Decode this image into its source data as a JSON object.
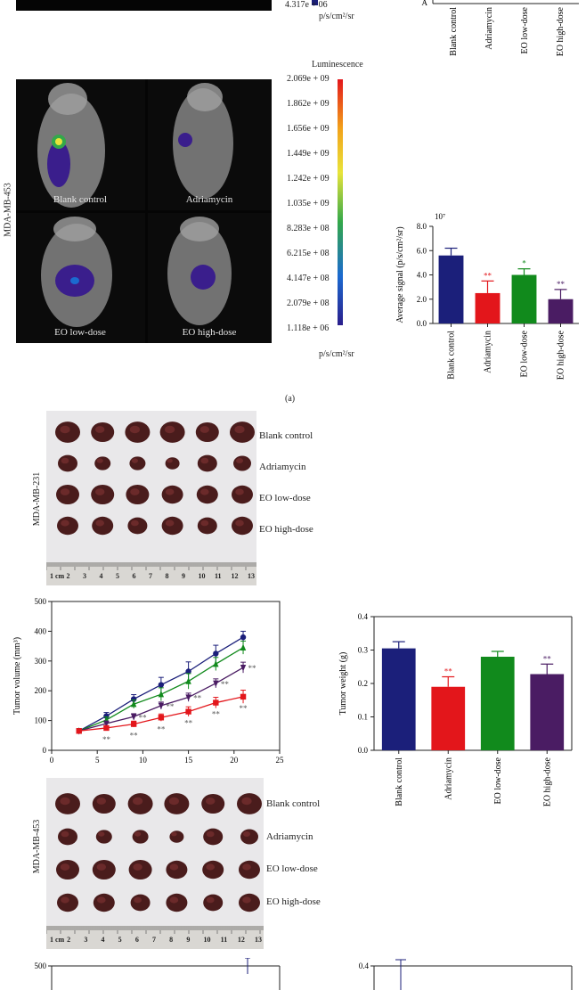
{
  "panel_a_label": "(a)",
  "luminescence": {
    "header": "Luminescence",
    "scale_values": [
      "2.069e + 09",
      "1.862e + 09",
      "1.656e + 09",
      "1.449e + 09",
      "1.242e + 09",
      "1.035e + 09",
      "8.283e + 08",
      "6.215e + 08",
      "4.147e + 08",
      "2.079e + 08",
      "1.118e + 06"
    ],
    "unit": "p/s/cm²/sr",
    "top_partial_value": "4.317e + 06",
    "top_partial_unit": "p/s/cm²/sr"
  },
  "mda453_photo_label": "MDA-MB-453",
  "mda231_photo_label": "MDA-MB-231",
  "mouse_labels": [
    "Blank control",
    "Adriamycin",
    "EO low-dose",
    "EO high-dose"
  ],
  "tumor_rows_231": [
    "Blank control",
    "Adriamycin",
    "EO low-dose",
    "EO high-dose"
  ],
  "tumor_rows_453": [
    "Blank control",
    "Adriamycin",
    "EO low-dose",
    "EO high-dose"
  ],
  "ruler_231": [
    "1 cm",
    "2",
    "3",
    "4",
    "5",
    "6",
    "7",
    "8",
    "9",
    "10",
    "11",
    "12",
    "13"
  ],
  "ruler_453": [
    "1 cm",
    "2",
    "3",
    "4",
    "5",
    "6",
    "7",
    "8",
    "9",
    "10",
    "11",
    "12",
    "13"
  ],
  "top_partial_bar_categories": [
    "Blank control",
    "Adriamycin",
    "EO low-dose",
    "EO high-dose"
  ],
  "colors": {
    "blank": "#1b1f7a",
    "adria": "#e3161b",
    "low": "#118a1c",
    "high": "#4a1c63"
  },
  "chart_data": [
    {
      "type": "bar",
      "id": "signal-453",
      "multiplier": "10⁷",
      "ylabel": "Average signal (p/s/cm²/sr)",
      "categories": [
        "Blank control",
        "Adriamycin",
        "EO low-dose",
        "EO high-dose"
      ],
      "values": [
        5.6,
        2.5,
        4.0,
        2.0
      ],
      "errors": [
        0.6,
        1.0,
        0.5,
        0.8
      ],
      "significance": [
        "",
        "**",
        "*",
        "**"
      ],
      "ylim": [
        0,
        8
      ],
      "yticks": [
        "0.0",
        "2.0",
        "4.0",
        "6.0",
        "8.0"
      ]
    },
    {
      "type": "line",
      "id": "volume-231",
      "ylabel": "Tumor volume (mm³)",
      "xlim": [
        0,
        25
      ],
      "ylim": [
        0,
        500
      ],
      "xticks": [
        "0",
        "5",
        "10",
        "15",
        "20",
        "25"
      ],
      "yticks": [
        "0",
        "100",
        "200",
        "300",
        "400",
        "500"
      ],
      "x": [
        3,
        6,
        9,
        12,
        15,
        18,
        21
      ],
      "series": [
        {
          "values": [
            65,
            115,
            172,
            220,
            265,
            325,
            380
          ],
          "errors": [
            4,
            12,
            15,
            25,
            32,
            28,
            20
          ],
          "marker": "circle",
          "labels": [
            "",
            "",
            "",
            "",
            "",
            "",
            ""
          ]
        },
        {
          "values": [
            65,
            102,
            155,
            188,
            232,
            290,
            345
          ],
          "errors": [
            4,
            10,
            14,
            22,
            26,
            22,
            22
          ],
          "marker": "triangle-up",
          "labels": [
            "",
            "",
            "",
            "",
            "",
            "",
            ""
          ]
        },
        {
          "values": [
            65,
            90,
            113,
            150,
            178,
            225,
            278
          ],
          "errors": [
            4,
            8,
            10,
            12,
            14,
            15,
            18
          ],
          "marker": "triangle-down",
          "labels": [
            "",
            "",
            "**",
            "**",
            "**",
            "**",
            "**"
          ]
        },
        {
          "values": [
            65,
            75,
            88,
            110,
            130,
            160,
            180
          ],
          "errors": [
            4,
            6,
            10,
            12,
            16,
            18,
            22
          ],
          "marker": "square",
          "labels": [
            "",
            "**",
            "**",
            "**",
            "**",
            "**",
            "**"
          ]
        }
      ]
    },
    {
      "type": "bar",
      "id": "weight-231",
      "ylabel": "Tumor weight (g)",
      "categories": [
        "Blank control",
        "Adriamycin",
        "EO low-dose",
        "EO high-dose"
      ],
      "values": [
        0.305,
        0.19,
        0.28,
        0.228
      ],
      "errors": [
        0.02,
        0.03,
        0.016,
        0.03
      ],
      "significance": [
        "",
        "**",
        "",
        "**"
      ],
      "ylim": [
        0,
        0.4
      ],
      "yticks": [
        "0.0",
        "0.1",
        "0.2",
        "0.3",
        "0.4"
      ]
    },
    {
      "type": "line",
      "id": "volume-453-partial",
      "ytick_top": "500"
    },
    {
      "type": "bar",
      "id": "weight-453-partial",
      "ytick_top": "0.4"
    }
  ]
}
